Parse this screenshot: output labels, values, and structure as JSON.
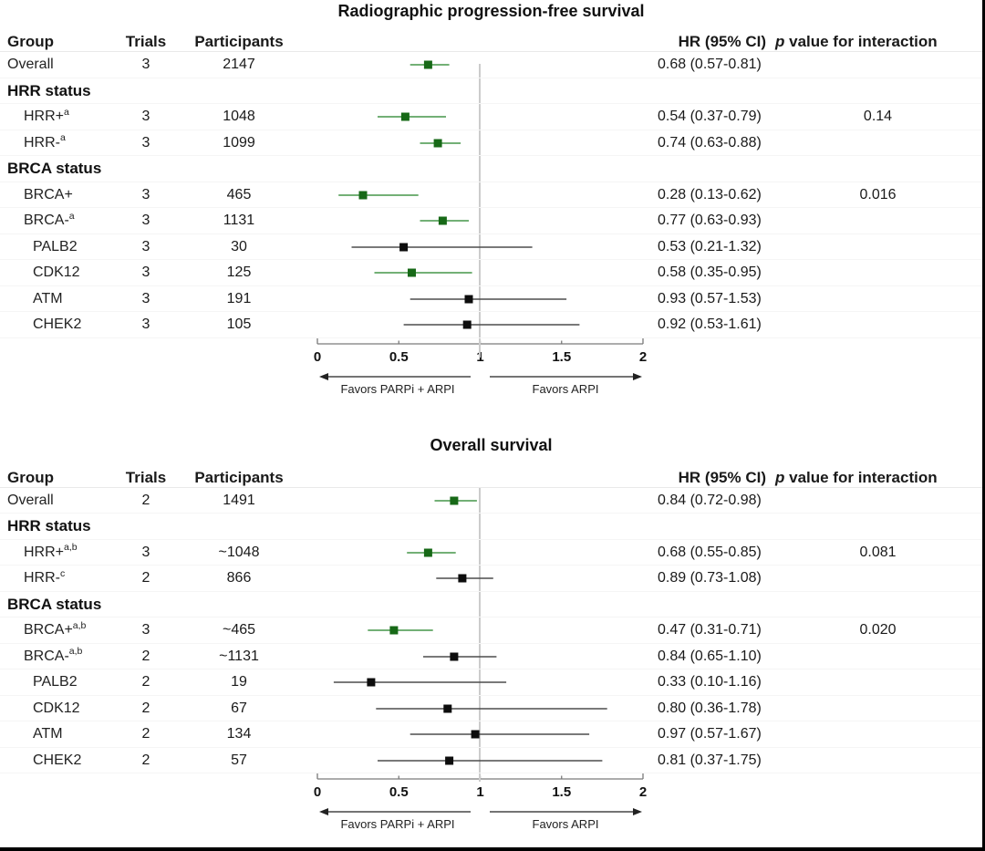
{
  "figure": {
    "kind": "forest-plot-figure"
  },
  "columns": {
    "group": "Group",
    "trials": "Trials",
    "participants": "Participants",
    "hr": "HR (95% CI)",
    "p_italic": "p",
    "p_rest": " value for interaction"
  },
  "colors": {
    "significant_marker": "#176917",
    "significant_line": "#459648",
    "nonsignificant_marker": "#0d0d0d",
    "nonsignificant_line": "#4d4d4d",
    "reference_line": "#cccccc",
    "axis": "#7a7a7a",
    "arrow": "#222222"
  },
  "chart_data": [
    {
      "type": "forest",
      "title": "Radiographic progression-free survival",
      "axis": {
        "range": [
          0,
          2
        ],
        "ticks": [
          0,
          0.5,
          1,
          1.5,
          2
        ],
        "tick_labels": [
          "0",
          "0.5",
          "1",
          "1.5",
          "2"
        ],
        "reference": 1,
        "left_arrow_label": "Favors PARPi + ARPI",
        "right_arrow_label": "Favors ARPI"
      },
      "rows": [
        {
          "group": "Overall",
          "sup": "",
          "indent": 0,
          "trials": "3",
          "participants": "2147",
          "hr": 0.68,
          "ci": [
            0.57,
            0.81
          ],
          "hr_label": "0.68 (0.57-0.81)",
          "p_interaction": "",
          "significant": true
        },
        {
          "header": "HRR status"
        },
        {
          "group": "HRR+",
          "sup": "a",
          "indent": 1,
          "trials": "3",
          "participants": "1048",
          "hr": 0.54,
          "ci": [
            0.37,
            0.79
          ],
          "hr_label": "0.54 (0.37-0.79)",
          "p_interaction": "0.14",
          "significant": true
        },
        {
          "group": "HRR-",
          "sup": "a",
          "indent": 1,
          "trials": "3",
          "participants": "1099",
          "hr": 0.74,
          "ci": [
            0.63,
            0.88
          ],
          "hr_label": "0.74 (0.63-0.88)",
          "p_interaction": "",
          "significant": true
        },
        {
          "header": "BRCA status"
        },
        {
          "group": "BRCA+",
          "sup": "",
          "indent": 1,
          "trials": "3",
          "participants": "465",
          "hr": 0.28,
          "ci": [
            0.13,
            0.62
          ],
          "hr_label": "0.28 (0.13-0.62)",
          "p_interaction": "0.016",
          "significant": true
        },
        {
          "group": "BRCA-",
          "sup": "a",
          "indent": 1,
          "trials": "3",
          "participants": "1131",
          "hr": 0.77,
          "ci": [
            0.63,
            0.93
          ],
          "hr_label": "0.77 (0.63-0.93)",
          "p_interaction": "",
          "significant": true
        },
        {
          "group": "PALB2",
          "sup": "",
          "indent": 2,
          "trials": "3",
          "participants": "30",
          "hr": 0.53,
          "ci": [
            0.21,
            1.32
          ],
          "hr_label": "0.53 (0.21-1.32)",
          "p_interaction": "",
          "significant": false
        },
        {
          "group": "CDK12",
          "sup": "",
          "indent": 2,
          "trials": "3",
          "participants": "125",
          "hr": 0.58,
          "ci": [
            0.35,
            0.95
          ],
          "hr_label": "0.58 (0.35-0.95)",
          "p_interaction": "",
          "significant": true
        },
        {
          "group": "ATM",
          "sup": "",
          "indent": 2,
          "trials": "3",
          "participants": "191",
          "hr": 0.93,
          "ci": [
            0.57,
            1.53
          ],
          "hr_label": "0.93 (0.57-1.53)",
          "p_interaction": "",
          "significant": false
        },
        {
          "group": "CHEK2",
          "sup": "",
          "indent": 2,
          "trials": "3",
          "participants": "105",
          "hr": 0.92,
          "ci": [
            0.53,
            1.61
          ],
          "hr_label": "0.92 (0.53-1.61)",
          "p_interaction": "",
          "significant": false
        }
      ]
    },
    {
      "type": "forest",
      "title": "Overall survival",
      "axis": {
        "range": [
          0,
          2
        ],
        "ticks": [
          0,
          0.5,
          1,
          1.5,
          2
        ],
        "tick_labels": [
          "0",
          "0.5",
          "1",
          "1.5",
          "2"
        ],
        "reference": 1,
        "left_arrow_label": "Favors PARPi + ARPI",
        "right_arrow_label": "Favors ARPI"
      },
      "rows": [
        {
          "group": "Overall",
          "sup": "",
          "indent": 0,
          "trials": "2",
          "participants": "1491",
          "hr": 0.84,
          "ci": [
            0.72,
            0.98
          ],
          "hr_label": "0.84 (0.72-0.98)",
          "p_interaction": "",
          "significant": true
        },
        {
          "header": "HRR status"
        },
        {
          "group": "HRR+",
          "sup": "a,b",
          "indent": 1,
          "trials": "3",
          "participants": "~1048",
          "hr": 0.68,
          "ci": [
            0.55,
            0.85
          ],
          "hr_label": "0.68 (0.55-0.85)",
          "p_interaction": "0.081",
          "significant": true
        },
        {
          "group": "HRR-",
          "sup": "c",
          "indent": 1,
          "trials": "2",
          "participants": "866",
          "hr": 0.89,
          "ci": [
            0.73,
            1.08
          ],
          "hr_label": "0.89 (0.73-1.08)",
          "p_interaction": "",
          "significant": false
        },
        {
          "header": "BRCA status"
        },
        {
          "group": "BRCA+",
          "sup": "a,b",
          "indent": 1,
          "trials": "3",
          "participants": "~465",
          "hr": 0.47,
          "ci": [
            0.31,
            0.71
          ],
          "hr_label": "0.47 (0.31-0.71)",
          "p_interaction": "0.020",
          "significant": true
        },
        {
          "group": "BRCA-",
          "sup": "a,b",
          "indent": 1,
          "trials": "2",
          "participants": "~1131",
          "hr": 0.84,
          "ci": [
            0.65,
            1.1
          ],
          "hr_label": "0.84 (0.65-1.10)",
          "p_interaction": "",
          "significant": false
        },
        {
          "group": "PALB2",
          "sup": "",
          "indent": 2,
          "trials": "2",
          "participants": "19",
          "hr": 0.33,
          "ci": [
            0.1,
            1.16
          ],
          "hr_label": "0.33 (0.10-1.16)",
          "p_interaction": "",
          "significant": false
        },
        {
          "group": "CDK12",
          "sup": "",
          "indent": 2,
          "trials": "2",
          "participants": "67",
          "hr": 0.8,
          "ci": [
            0.36,
            1.78
          ],
          "hr_label": "0.80 (0.36-1.78)",
          "p_interaction": "",
          "significant": false
        },
        {
          "group": "ATM",
          "sup": "",
          "indent": 2,
          "trials": "2",
          "participants": "134",
          "hr": 0.97,
          "ci": [
            0.57,
            1.67
          ],
          "hr_label": "0.97 (0.57-1.67)",
          "p_interaction": "",
          "significant": false
        },
        {
          "group": "CHEK2",
          "sup": "",
          "indent": 2,
          "trials": "2",
          "participants": "57",
          "hr": 0.81,
          "ci": [
            0.37,
            1.75
          ],
          "hr_label": "0.81 (0.37-1.75)",
          "p_interaction": "",
          "significant": false
        }
      ]
    }
  ]
}
